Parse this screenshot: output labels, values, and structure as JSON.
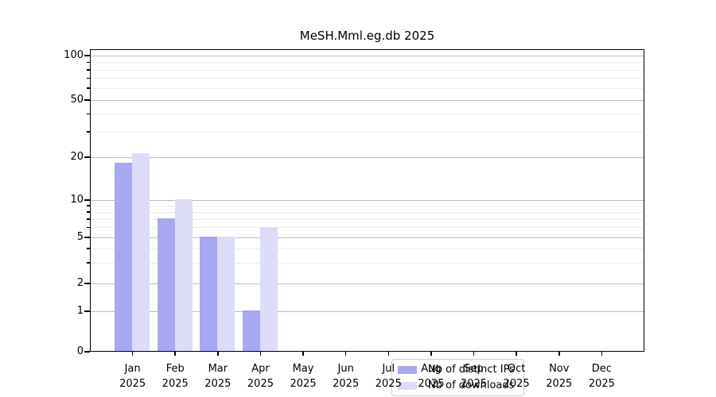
{
  "title": "MeSH.Mml.eg.db 2025",
  "chart_data": {
    "type": "bar",
    "title": "MeSH.Mml.eg.db 2025",
    "xlabel": "",
    "ylabel": "",
    "categories": [
      "Jan 2025",
      "Feb 2025",
      "Mar 2025",
      "Apr 2025",
      "May 2025",
      "Jun 2025",
      "Jul 2025",
      "Aug 2025",
      "Sep 2025",
      "Oct 2025",
      "Nov 2025",
      "Dec 2025"
    ],
    "series": [
      {
        "name": "Nb of distinct IPs",
        "color": "#a7a7f2",
        "values": [
          18,
          7,
          5,
          1,
          0,
          0,
          0,
          0,
          0,
          0,
          0,
          0
        ]
      },
      {
        "name": "Nb of downloads",
        "color": "#dcdcf7",
        "values": [
          21,
          10,
          5,
          6,
          0,
          0,
          0,
          0,
          0,
          0,
          0,
          0
        ]
      }
    ],
    "y_scale": "log-like",
    "ylim": [
      0,
      110
    ],
    "y_ticks": [
      0,
      1,
      2,
      5,
      10,
      20,
      50,
      100
    ],
    "y_minor_ticks": [
      3,
      4,
      6,
      7,
      8,
      9,
      30,
      40,
      60,
      70,
      80,
      90
    ],
    "grid": "horizontal major and minor",
    "legend_position": "inside lower center"
  },
  "colors": {
    "major_grid": "#bdbdbd",
    "minor_grid": "#ebebeb",
    "axis": "#000000"
  }
}
